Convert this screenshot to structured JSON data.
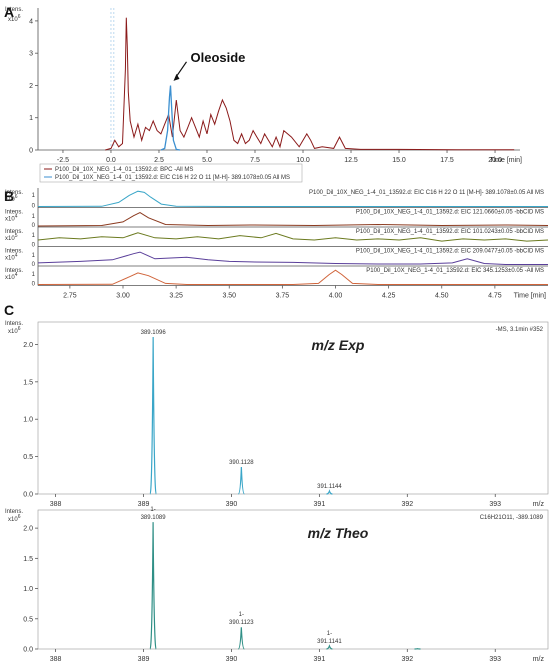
{
  "panels": {
    "a": "A",
    "b": "B",
    "c": "C"
  },
  "chart_data": [
    {
      "type": "line",
      "panel": "A",
      "ylabel": "Intens.",
      "yexp": "x10^6",
      "xunit": "Time [min]",
      "xlim": [
        -3.8,
        21.3
      ],
      "ylim": [
        0,
        4.4
      ],
      "xticks": [
        "-2.5",
        "0.0",
        "2.5",
        "5.0",
        "7.5",
        "10.0",
        "12.5",
        "15.0",
        "17.5",
        "20.0"
      ],
      "yticks": [
        "0",
        "1",
        "2",
        "3",
        "4"
      ],
      "annotation": "Oleoside",
      "legend": [
        "P100_Dil_10X_NEG_1-4_01_13592.d: BPC -All MS",
        "P100_Dil_10X_NEG_1-4_01_13592.d: EIC C16 H 22 O 11 [M-H]- 389.1078±0.05 All MS"
      ],
      "colors": {
        "bpc": "#8b1a1a",
        "eic": "#3b8fd0"
      },
      "series": [
        {
          "name": "BPC",
          "x": [
            -0.3,
            0.0,
            0.2,
            0.4,
            0.6,
            0.75,
            0.8,
            0.85,
            0.9,
            1.0,
            1.2,
            1.4,
            1.6,
            1.8,
            2.0,
            2.2,
            2.4,
            2.6,
            2.8,
            3.0,
            3.2,
            3.4,
            3.6,
            3.8,
            4.0,
            4.2,
            4.4,
            4.6,
            4.8,
            5.0,
            5.2,
            5.4,
            5.6,
            5.8,
            6.0,
            6.2,
            6.4,
            6.6,
            6.8,
            7.0,
            7.2,
            7.4,
            7.6,
            7.8,
            8.0,
            8.2,
            8.4,
            8.6,
            8.8,
            9.0,
            9.4,
            9.8,
            10.2,
            10.4,
            10.6,
            11.0,
            11.6,
            11.9,
            12.2,
            13.0,
            15.0,
            18.0,
            21.0
          ],
          "values": [
            0.0,
            0.05,
            0.3,
            0.1,
            0.2,
            2.5,
            4.1,
            3.2,
            1.8,
            0.9,
            0.4,
            0.8,
            0.3,
            0.7,
            0.6,
            0.9,
            0.6,
            0.5,
            0.8,
            1.1,
            0.4,
            1.55,
            0.6,
            0.4,
            0.7,
            1.0,
            0.7,
            0.4,
            0.9,
            0.5,
            1.1,
            0.8,
            1.2,
            1.55,
            1.3,
            0.9,
            0.3,
            0.2,
            0.5,
            0.2,
            0.3,
            0.6,
            0.4,
            0.2,
            0.5,
            0.3,
            0.1,
            0.4,
            0.1,
            0.6,
            0.4,
            0.1,
            0.5,
            0.3,
            0.05,
            0.1,
            0.05,
            0.4,
            0.05,
            0.02,
            0.02,
            0.01,
            0.01
          ]
        },
        {
          "name": "EIC 389.1078",
          "x": [
            2.6,
            2.8,
            2.95,
            3.05,
            3.1,
            3.15,
            3.25,
            3.4,
            3.6
          ],
          "values": [
            0.0,
            0.05,
            0.6,
            1.65,
            2.0,
            1.4,
            0.3,
            0.02,
            0.0
          ]
        }
      ]
    },
    {
      "type": "line",
      "panel": "B",
      "xlim": [
        2.6,
        5.0
      ],
      "xticks": [
        "2.75",
        "3.00",
        "3.25",
        "3.50",
        "3.75",
        "4.00",
        "4.25",
        "4.50",
        "4.75"
      ],
      "xunit": "Time [min]",
      "rows": [
        {
          "ylabel": "Intens.",
          "yexp": "x10^6",
          "yticks": [
            "1",
            "0"
          ],
          "ymax": 1.4,
          "label": "P100_Dil_10X_NEG_1-4_01_13592.d: EIC C16 H 22 O 11 [M-H]- 389.1078±0.05 All MS",
          "color": "#3aa6c8",
          "x": [
            2.6,
            2.9,
            2.98,
            3.03,
            3.07,
            3.1,
            3.13,
            3.18,
            3.25,
            3.5,
            5.0
          ],
          "values": [
            0,
            0.02,
            0.35,
            0.95,
            1.3,
            1.2,
            0.8,
            0.2,
            0.02,
            0.0,
            0.0
          ]
        },
        {
          "ylabel": "Intens.",
          "yexp": "x10^4",
          "yticks": [
            "1",
            "0"
          ],
          "ymax": 1.6,
          "label": "P100_Dil_10X_NEG_1-4_01_13592.d: EIC 121.0660±0.05 -bbCID MS",
          "color": "#8b3a1f",
          "x": [
            2.6,
            2.9,
            3.0,
            3.05,
            3.08,
            3.12,
            3.2,
            3.4,
            3.6,
            3.9,
            4.2,
            4.5,
            4.8,
            5.0
          ],
          "values": [
            0,
            0.05,
            0.4,
            1.0,
            1.3,
            0.8,
            0.15,
            0.05,
            0.1,
            0.05,
            0.15,
            0.05,
            0.1,
            0.05
          ]
        },
        {
          "ylabel": "Intens.",
          "yexp": "x10^5",
          "yticks": [
            "1",
            "0"
          ],
          "ymax": 1.5,
          "label": "P100_Dil_10X_NEG_1-4_01_13592.d: EIC 101.0243±0.05 -bbCID MS",
          "color": "#6b7a1f",
          "x": [
            2.6,
            2.7,
            2.8,
            2.9,
            3.0,
            3.07,
            3.15,
            3.25,
            3.35,
            3.45,
            3.55,
            3.65,
            3.72,
            3.8,
            3.9,
            4.0,
            4.1,
            4.2,
            4.3,
            4.4,
            4.5,
            4.6,
            4.7,
            4.8,
            4.9,
            5.0
          ],
          "values": [
            0.5,
            0.7,
            0.6,
            0.8,
            0.7,
            1.15,
            0.7,
            0.6,
            0.8,
            0.6,
            0.9,
            0.7,
            1.1,
            0.6,
            0.5,
            0.7,
            0.5,
            0.6,
            0.5,
            0.7,
            0.4,
            0.6,
            0.5,
            0.6,
            0.4,
            0.5
          ]
        },
        {
          "ylabel": "Intens.",
          "yexp": "x10^4",
          "yticks": [
            "1",
            "0"
          ],
          "ymax": 1.6,
          "label": "P100_Dil_10X_NEG_1-4_01_13592.d: EIC 209.0477±0.05 -bbCID MS",
          "color": "#5a3f9a",
          "x": [
            2.6,
            2.8,
            2.95,
            3.05,
            3.08,
            3.15,
            3.3,
            3.4,
            3.5,
            3.6,
            3.8,
            4.0,
            4.2,
            4.4,
            4.55,
            4.62,
            4.7,
            4.8,
            5.0
          ],
          "values": [
            0.2,
            0.35,
            0.5,
            1.1,
            1.25,
            0.6,
            0.75,
            0.5,
            0.35,
            0.3,
            0.25,
            0.15,
            0.1,
            0.1,
            0.2,
            0.6,
            0.15,
            0.05,
            0.05
          ]
        },
        {
          "ylabel": "Intens.",
          "yexp": "x10^4",
          "yticks": [
            "1",
            "0"
          ],
          "ymax": 1.5,
          "label": "P100_Dil_10X_NEG_1-4_01_13592.d: EIC 345.1253±0.05 -All MS",
          "color": "#d0643a",
          "x": [
            2.6,
            2.95,
            3.03,
            3.07,
            3.12,
            3.2,
            3.3,
            3.8,
            3.92,
            3.97,
            4.0,
            4.03,
            4.08,
            4.2,
            5.0
          ],
          "values": [
            0,
            0.02,
            0.7,
            1.05,
            0.8,
            0.1,
            0.0,
            0.0,
            0.1,
            0.9,
            1.3,
            0.9,
            0.1,
            0.0,
            0.0
          ]
        }
      ]
    },
    {
      "type": "bar",
      "panel": "C (top)",
      "title": "m/z Exp",
      "info": "-MS, 3.1min #352",
      "ylabel": "Intens.",
      "yexp": "x10^6",
      "xunit": "m/z",
      "xlim": [
        387.8,
        393.6
      ],
      "ylim": [
        0,
        2.3
      ],
      "xticks": [
        "388",
        "389",
        "390",
        "391",
        "392",
        "393"
      ],
      "yticks": [
        "0.0",
        "0.5",
        "1.0",
        "1.5",
        "2.0"
      ],
      "color": "#3aa6c8",
      "peaks": [
        {
          "x": 389.1096,
          "y": 2.1,
          "label": "389.1096"
        },
        {
          "x": 390.1128,
          "y": 0.36,
          "label": "390.1128"
        },
        {
          "x": 391.1144,
          "y": 0.04,
          "label": "391.1144"
        }
      ]
    },
    {
      "type": "bar",
      "panel": "C (bottom)",
      "title": "m/z Theo",
      "info": "C16H21O11, -389.1089",
      "ylabel": "Intens.",
      "yexp": "x10^6",
      "xunit": "m/z",
      "xlim": [
        387.8,
        393.6
      ],
      "ylim": [
        0,
        2.3
      ],
      "xticks": [
        "388",
        "389",
        "390",
        "391",
        "392",
        "393"
      ],
      "yticks": [
        "0.0",
        "0.5",
        "1.0",
        "1.5",
        "2.0"
      ],
      "color": "#2f8f86",
      "peaks": [
        {
          "x": 389.1089,
          "y": 2.1,
          "label": "1-",
          "label2": "389.1089"
        },
        {
          "x": 390.1123,
          "y": 0.36,
          "label": "1-",
          "label2": "390.1123"
        },
        {
          "x": 391.1141,
          "y": 0.05,
          "label": "1-",
          "label2": "391.1141"
        },
        {
          "x": 392.1158,
          "y": 0.005,
          "label": "",
          "label2": ""
        }
      ]
    }
  ]
}
